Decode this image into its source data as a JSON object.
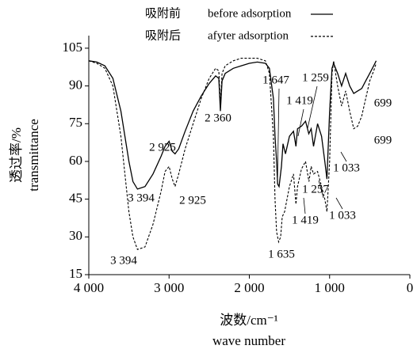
{
  "chart_data": {
    "type": "line",
    "xlabel": "波数/cm⁻¹",
    "xlabel_en": "wave number",
    "ylabel": "透过率/%",
    "ylabel_en": "transmittance",
    "xlim": [
      4000,
      0
    ],
    "xticks": [
      {
        "value": 4000,
        "label": "4 000"
      },
      {
        "value": 3000,
        "label": "3 000"
      },
      {
        "value": 2000,
        "label": "2 000"
      },
      {
        "value": 1000,
        "label": "1 000"
      },
      0
    ],
    "ylim": [
      15,
      110
    ],
    "yticks": [
      15,
      30,
      45,
      60,
      75,
      90,
      105
    ],
    "grid": false,
    "legend": "top",
    "series": [
      {
        "name": "before adsorption",
        "name_cn": "吸附前",
        "color": "#000000",
        "dash": "solid",
        "x": [
          4000,
          3900,
          3800,
          3700,
          3600,
          3500,
          3450,
          3394,
          3300,
          3200,
          3100,
          3050,
          3000,
          2960,
          2925,
          2880,
          2800,
          2700,
          2600,
          2500,
          2420,
          2380,
          2360,
          2340,
          2300,
          2200,
          2100,
          2000,
          1900,
          1800,
          1750,
          1700,
          1680,
          1660,
          1647,
          1630,
          1600,
          1580,
          1550,
          1500,
          1450,
          1419,
          1400,
          1350,
          1300,
          1259,
          1230,
          1200,
          1150,
          1100,
          1060,
          1033,
          1000,
          970,
          950,
          900,
          850,
          800,
          750,
          699,
          650,
          600,
          550,
          500,
          450,
          420
        ],
        "values": [
          100,
          99.5,
          98,
          93,
          80,
          60,
          52,
          49,
          50,
          55,
          62,
          66,
          68,
          64,
          63,
          65,
          72,
          80,
          86,
          91,
          94,
          93,
          80,
          92,
          95,
          97,
          98,
          99,
          99.5,
          99,
          97,
          85,
          70,
          60,
          51,
          50,
          58,
          67,
          63,
          70,
          72,
          66,
          73,
          74,
          76,
          71,
          73,
          66,
          75,
          70,
          60,
          53,
          80,
          97,
          99,
          95,
          90,
          95,
          90,
          87,
          88,
          89,
          92,
          95,
          98,
          100
        ]
      },
      {
        "name": "afyter adsorption",
        "name_cn": "吸附后",
        "color": "#000000",
        "dash": "dashed",
        "x": [
          4000,
          3900,
          3800,
          3700,
          3600,
          3500,
          3450,
          3394,
          3300,
          3200,
          3100,
          3050,
          3000,
          2960,
          2925,
          2880,
          2800,
          2700,
          2600,
          2500,
          2420,
          2380,
          2360,
          2340,
          2300,
          2200,
          2100,
          2000,
          1900,
          1800,
          1750,
          1700,
          1680,
          1660,
          1635,
          1610,
          1590,
          1560,
          1500,
          1450,
          1419,
          1400,
          1350,
          1300,
          1257,
          1230,
          1200,
          1150,
          1100,
          1060,
          1033,
          1000,
          970,
          950,
          900,
          850,
          800,
          750,
          699,
          650,
          600,
          550,
          500,
          450,
          420
        ],
        "values": [
          100,
          99,
          97,
          90,
          70,
          40,
          30,
          25,
          26,
          35,
          48,
          56,
          58,
          53,
          50,
          55,
          65,
          75,
          85,
          93,
          97,
          96,
          83,
          95,
          98,
          100,
          101,
          101,
          101,
          100,
          95,
          70,
          45,
          32,
          28,
          30,
          38,
          40,
          50,
          55,
          43,
          50,
          57,
          60,
          52,
          58,
          55,
          56,
          50,
          45,
          40,
          60,
          95,
          100,
          90,
          82,
          88,
          80,
          73,
          74,
          78,
          85,
          92,
          96,
          99
        ]
      }
    ],
    "annotations": [
      "2 925",
      "2 360",
      "1 647",
      "1 259",
      "1 419",
      "699",
      "699",
      "1 033",
      "3 394",
      "2 925",
      "1 257",
      "1 419",
      "1 033",
      "3 394",
      "1 635"
    ]
  }
}
